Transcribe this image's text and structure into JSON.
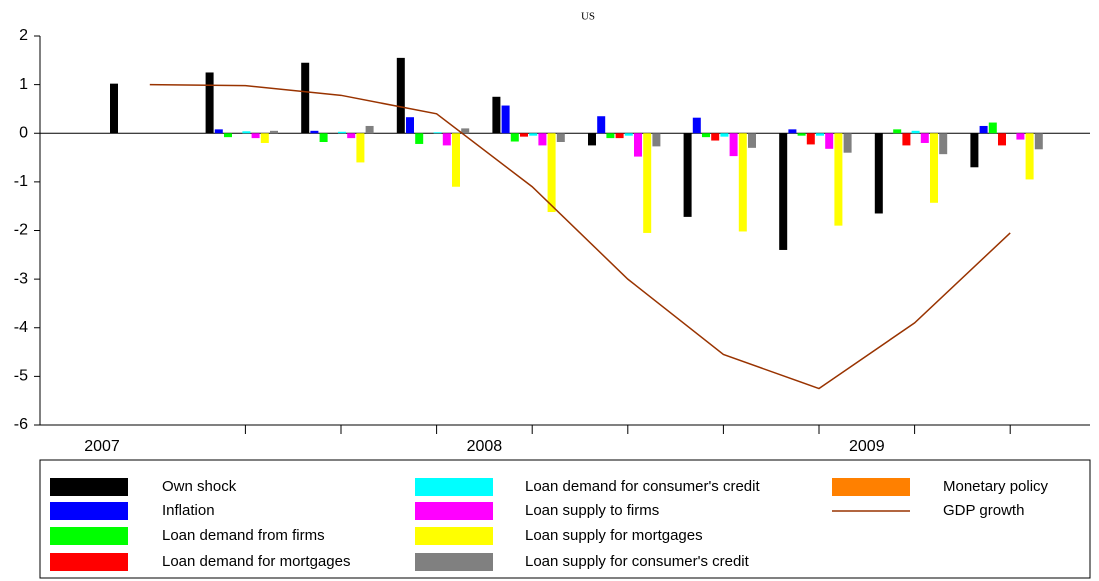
{
  "chart_data": {
    "type": "bar",
    "title": "US",
    "categories": [
      "2007",
      null,
      null,
      null,
      "2008",
      null,
      null,
      null,
      "2009",
      null
    ],
    "ylim": [
      -6,
      2
    ],
    "yticks": [
      -6,
      -5,
      -4,
      -3,
      -2,
      -1,
      0,
      1,
      2
    ],
    "series": [
      {
        "name": "Own shock",
        "color": "#000000",
        "values": [
          1.02,
          1.25,
          1.45,
          1.55,
          0.75,
          -0.25,
          -1.72,
          -2.4,
          -1.65,
          -0.7
        ]
      },
      {
        "name": "Inflation",
        "color": "#0000ff",
        "values": [
          0,
          0.08,
          0.05,
          0.33,
          0.57,
          0.35,
          0.32,
          0.08,
          0,
          0.15
        ]
      },
      {
        "name": "Loan demand from firms",
        "color": "#00ff00",
        "values": [
          0,
          -0.08,
          -0.18,
          -0.22,
          -0.17,
          -0.1,
          -0.08,
          -0.05,
          0.08,
          0.22
        ]
      },
      {
        "name": "Loan demand for mortgages",
        "color": "#ff0000",
        "values": [
          0,
          0,
          0,
          0,
          -0.07,
          -0.1,
          -0.15,
          -0.23,
          -0.25,
          -0.25
        ]
      },
      {
        "name": "Loan demand for consumer's credit",
        "color": "#00ffff",
        "values": [
          0,
          0.04,
          0.03,
          0.02,
          -0.05,
          -0.05,
          -0.07,
          -0.05,
          0.05,
          0
        ]
      },
      {
        "name": "Loan supply to firms",
        "color": "#ff00ff",
        "values": [
          0,
          -0.1,
          -0.1,
          -0.25,
          -0.25,
          -0.48,
          -0.47,
          -0.32,
          -0.2,
          -0.13
        ]
      },
      {
        "name": "Loan supply for mortgages",
        "color": "#ffff00",
        "values": [
          0,
          -0.2,
          -0.6,
          -1.1,
          -1.62,
          -2.05,
          -2.02,
          -1.9,
          -1.43,
          -0.95
        ]
      },
      {
        "name": "Loan supply for consumer's credit",
        "color": "#808080",
        "values": [
          0,
          0.05,
          0.15,
          0.1,
          -0.18,
          -0.27,
          -0.3,
          -0.4,
          -0.43,
          -0.33
        ]
      },
      {
        "name": "Monetary policy",
        "color": "#ff8000",
        "values": [
          0,
          0,
          0,
          0,
          0,
          0,
          0,
          0,
          0,
          0
        ]
      },
      {
        "name": "GDP growth",
        "color": "#993300",
        "type": "line",
        "values": [
          1.0,
          0.98,
          0.78,
          0.4,
          -1.1,
          -3.0,
          -4.55,
          -5.25,
          -3.9,
          -2.05
        ]
      }
    ]
  }
}
